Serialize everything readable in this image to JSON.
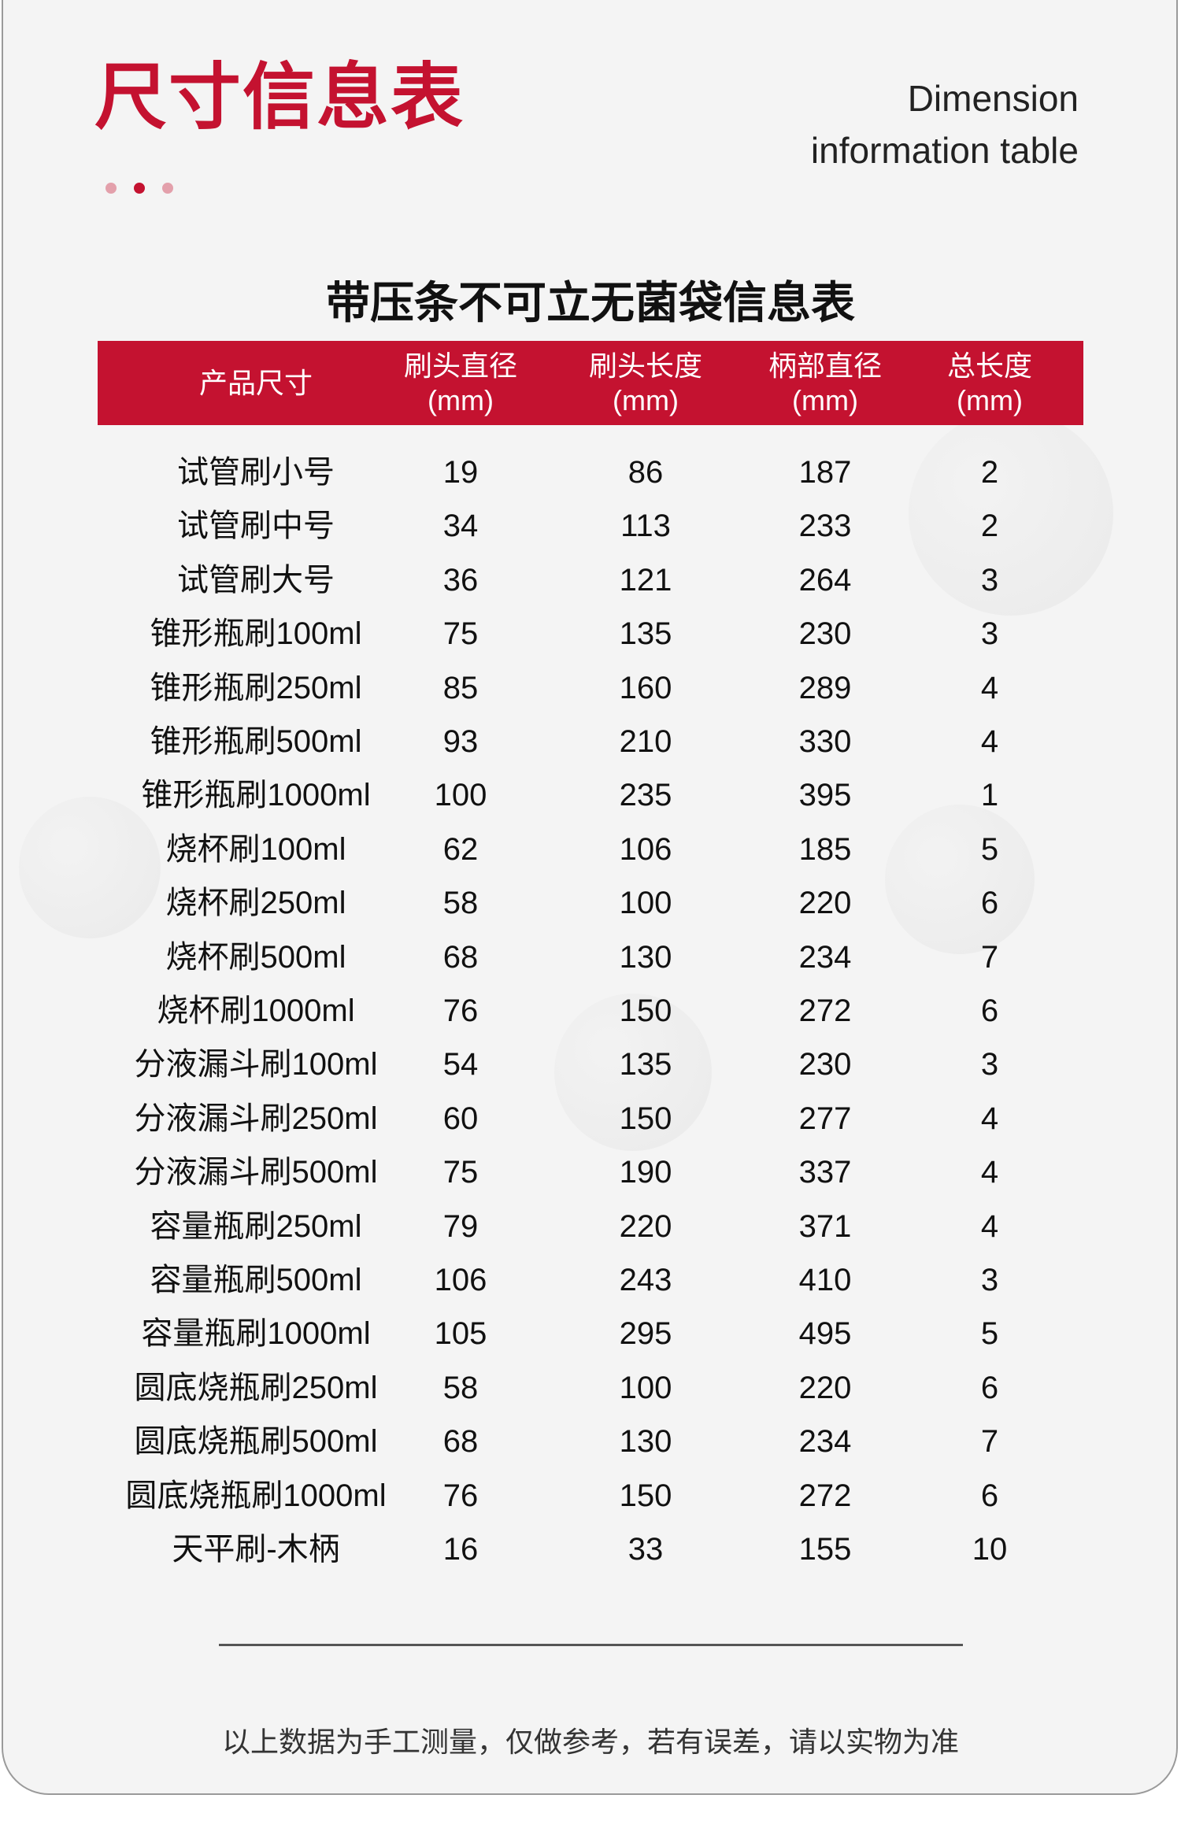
{
  "header": {
    "title": "尺寸信息表",
    "english_line1": "Dimension",
    "english_line2": "information table",
    "accent_color": "#c41230"
  },
  "table": {
    "subtitle": "带压条不可立无菌袋信息表",
    "columns": [
      {
        "label": "产品尺寸",
        "unit": ""
      },
      {
        "label": "刷头直径",
        "unit": "(mm)"
      },
      {
        "label": "刷头长度",
        "unit": "(mm)"
      },
      {
        "label": "柄部直径",
        "unit": "(mm)"
      },
      {
        "label": "总长度",
        "unit": "(mm)"
      }
    ],
    "rows": [
      [
        "试管刷小号",
        "19",
        "86",
        "187",
        "2"
      ],
      [
        "试管刷中号",
        "34",
        "113",
        "233",
        "2"
      ],
      [
        "试管刷大号",
        "36",
        "121",
        "264",
        "3"
      ],
      [
        "锥形瓶刷100ml",
        "75",
        "135",
        "230",
        "3"
      ],
      [
        "锥形瓶刷250ml",
        "85",
        "160",
        "289",
        "4"
      ],
      [
        "锥形瓶刷500ml",
        "93",
        "210",
        "330",
        "4"
      ],
      [
        "锥形瓶刷1000ml",
        "100",
        "235",
        "395",
        "1"
      ],
      [
        "烧杯刷100ml",
        "62",
        "106",
        "185",
        "5"
      ],
      [
        "烧杯刷250ml",
        "58",
        "100",
        "220",
        "6"
      ],
      [
        "烧杯刷500ml",
        "68",
        "130",
        "234",
        "7"
      ],
      [
        "烧杯刷1000ml",
        "76",
        "150",
        "272",
        "6"
      ],
      [
        "分液漏斗刷100ml",
        "54",
        "135",
        "230",
        "3"
      ],
      [
        "分液漏斗刷250ml",
        "60",
        "150",
        "277",
        "4"
      ],
      [
        "分液漏斗刷500ml",
        "75",
        "190",
        "337",
        "4"
      ],
      [
        "容量瓶刷250ml",
        "79",
        "220",
        "371",
        "4"
      ],
      [
        "容量瓶刷500ml",
        "106",
        "243",
        "410",
        "3"
      ],
      [
        "容量瓶刷1000ml",
        "105",
        "295",
        "495",
        "5"
      ],
      [
        "圆底烧瓶刷250ml",
        "58",
        "100",
        "220",
        "6"
      ],
      [
        "圆底烧瓶刷500ml",
        "68",
        "130",
        "234",
        "7"
      ],
      [
        "圆底烧瓶刷1000ml",
        "76",
        "150",
        "272",
        "6"
      ],
      [
        "天平刷-木柄",
        "16",
        "33",
        "155",
        "10"
      ]
    ]
  },
  "footer": {
    "note": "以上数据为手工测量，仅做参考，若有误差，请以实物为准"
  }
}
